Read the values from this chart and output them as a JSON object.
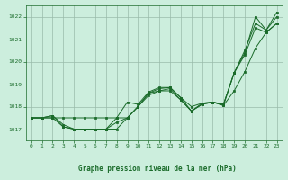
{
  "title": "Graphe pression niveau de la mer (hPa)",
  "bg_color": "#cceedd",
  "grid_color": "#99bbaa",
  "line_color": "#1a6b2a",
  "xlim": [
    -0.5,
    23.5
  ],
  "ylim": [
    1016.5,
    1022.5
  ],
  "yticks": [
    1017,
    1018,
    1019,
    1020,
    1021,
    1022
  ],
  "xticks": [
    0,
    1,
    2,
    3,
    4,
    5,
    6,
    7,
    8,
    9,
    10,
    11,
    12,
    13,
    14,
    15,
    16,
    17,
    18,
    19,
    20,
    21,
    22,
    23
  ],
  "series": [
    [
      1017.5,
      1017.5,
      1017.5,
      1017.5,
      1017.5,
      1017.5,
      1017.5,
      1017.5,
      1017.5,
      1017.5,
      1018.0,
      1018.6,
      1018.8,
      1018.85,
      1018.4,
      1017.8,
      1018.15,
      1018.2,
      1018.1,
      1019.5,
      1020.4,
      1022.0,
      1021.4,
      1022.2
    ],
    [
      1017.5,
      1017.5,
      1017.5,
      1017.1,
      1017.0,
      1017.0,
      1017.0,
      1017.0,
      1017.0,
      1017.5,
      1018.0,
      1018.6,
      1018.7,
      1018.8,
      1018.3,
      1017.8,
      1018.1,
      1018.2,
      1018.1,
      1019.5,
      1020.5,
      1021.7,
      1021.4,
      1022.0
    ],
    [
      1017.5,
      1017.5,
      1017.6,
      1017.1,
      1017.0,
      1017.0,
      1017.0,
      1017.0,
      1017.5,
      1018.2,
      1018.1,
      1018.65,
      1018.85,
      1018.85,
      1018.4,
      1018.0,
      1018.15,
      1018.2,
      1018.05,
      1018.7,
      1019.55,
      1020.6,
      1021.3,
      1021.7
    ],
    [
      1017.5,
      1017.5,
      1017.6,
      1017.2,
      1017.0,
      1017.0,
      1017.0,
      1017.0,
      1017.3,
      1017.5,
      1018.0,
      1018.5,
      1018.7,
      1018.7,
      1018.3,
      1017.8,
      1018.1,
      1018.2,
      1018.05,
      1019.5,
      1020.3,
      1021.5,
      1021.3,
      1021.7
    ]
  ]
}
